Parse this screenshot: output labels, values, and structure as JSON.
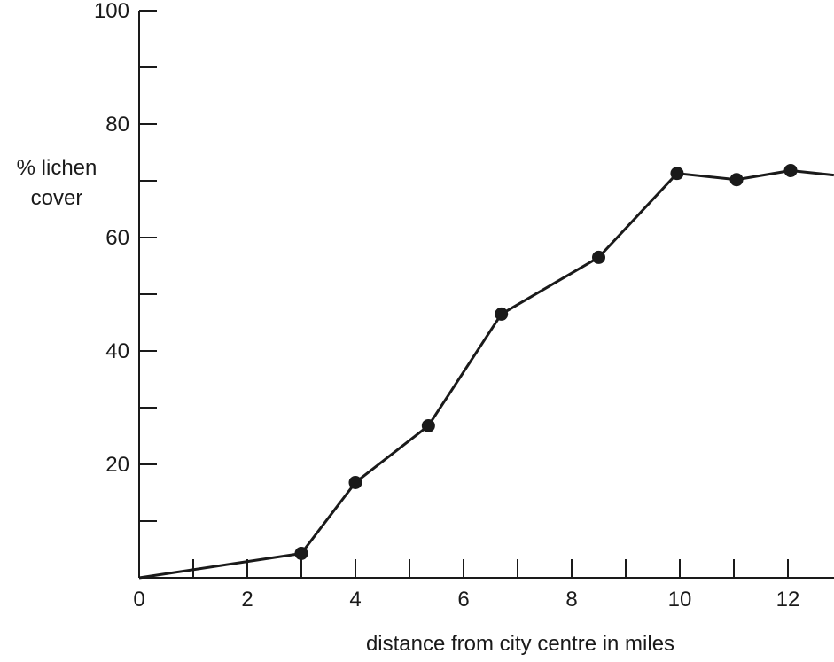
{
  "chart_data": {
    "type": "line",
    "title": "",
    "xlabel": "distance from city centre in miles",
    "ylabel_lines": [
      "% lichen",
      "cover"
    ],
    "xlim": [
      0,
      12.8
    ],
    "ylim": [
      0,
      100
    ],
    "x_major_ticks": [
      0,
      2,
      4,
      6,
      8,
      10,
      12
    ],
    "x_minor_ticks": [
      1,
      3,
      5,
      7,
      9,
      11
    ],
    "y_major_ticks": [
      20,
      40,
      60,
      80,
      100
    ],
    "y_minor_ticks": [
      10,
      30,
      50,
      70,
      90
    ],
    "x_tick_labels": [
      "0",
      "2",
      "4",
      "6",
      "8",
      "10",
      "12"
    ],
    "y_tick_labels": [
      "20",
      "40",
      "60",
      "80",
      "100"
    ],
    "series": [
      {
        "x": [
          0,
          3.0,
          4.0,
          5.35,
          6.7,
          8.5,
          9.95,
          11.05,
          12.05,
          12.85
        ],
        "y": [
          0,
          4.3,
          16.8,
          26.8,
          46.5,
          56.5,
          71.3,
          70.2,
          71.8,
          71.0
        ],
        "markers": [
          false,
          true,
          true,
          true,
          true,
          true,
          true,
          true,
          true,
          false
        ]
      }
    ],
    "grid": false,
    "legend": "none",
    "colors": {
      "line": "#1a1a1a",
      "marker": "#1a1a1a",
      "axis": "#1a1a1a",
      "background": "#ffffff"
    }
  }
}
